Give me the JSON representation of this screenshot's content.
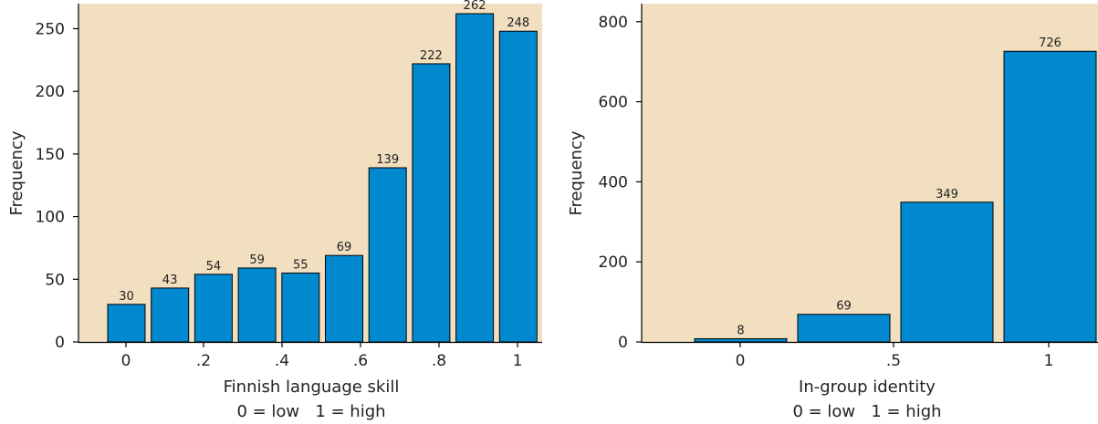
{
  "chart_data": [
    {
      "type": "bar",
      "panel": "left",
      "bar_values": [
        30,
        43,
        54,
        59,
        55,
        69,
        139,
        222,
        262,
        248
      ],
      "x_tick_labels": [
        "0",
        ".2",
        ".4",
        ".6",
        ".8",
        "1"
      ],
      "y_ticks": [
        0,
        50,
        100,
        150,
        200,
        250
      ],
      "ylim": [
        0,
        270
      ],
      "xlabel": "Finnish language skill",
      "xlabel_sub": "0 = low   1 = high",
      "ylabel": "Frequency",
      "grid": false,
      "colors": {
        "bar": "#0089cf",
        "background": "#f1dfc0"
      }
    },
    {
      "type": "bar",
      "panel": "right",
      "bar_values": [
        8,
        69,
        349,
        726
      ],
      "x_tick_labels": [
        "0",
        ".5",
        "1"
      ],
      "y_ticks": [
        0,
        200,
        400,
        600,
        800
      ],
      "ylim": [
        0,
        845
      ],
      "xlabel": "In-group identity",
      "xlabel_sub": "0 = low   1 = high",
      "ylabel": "Frequency",
      "grid": false,
      "colors": {
        "bar": "#0089cf",
        "background": "#f1dfc0"
      }
    }
  ]
}
